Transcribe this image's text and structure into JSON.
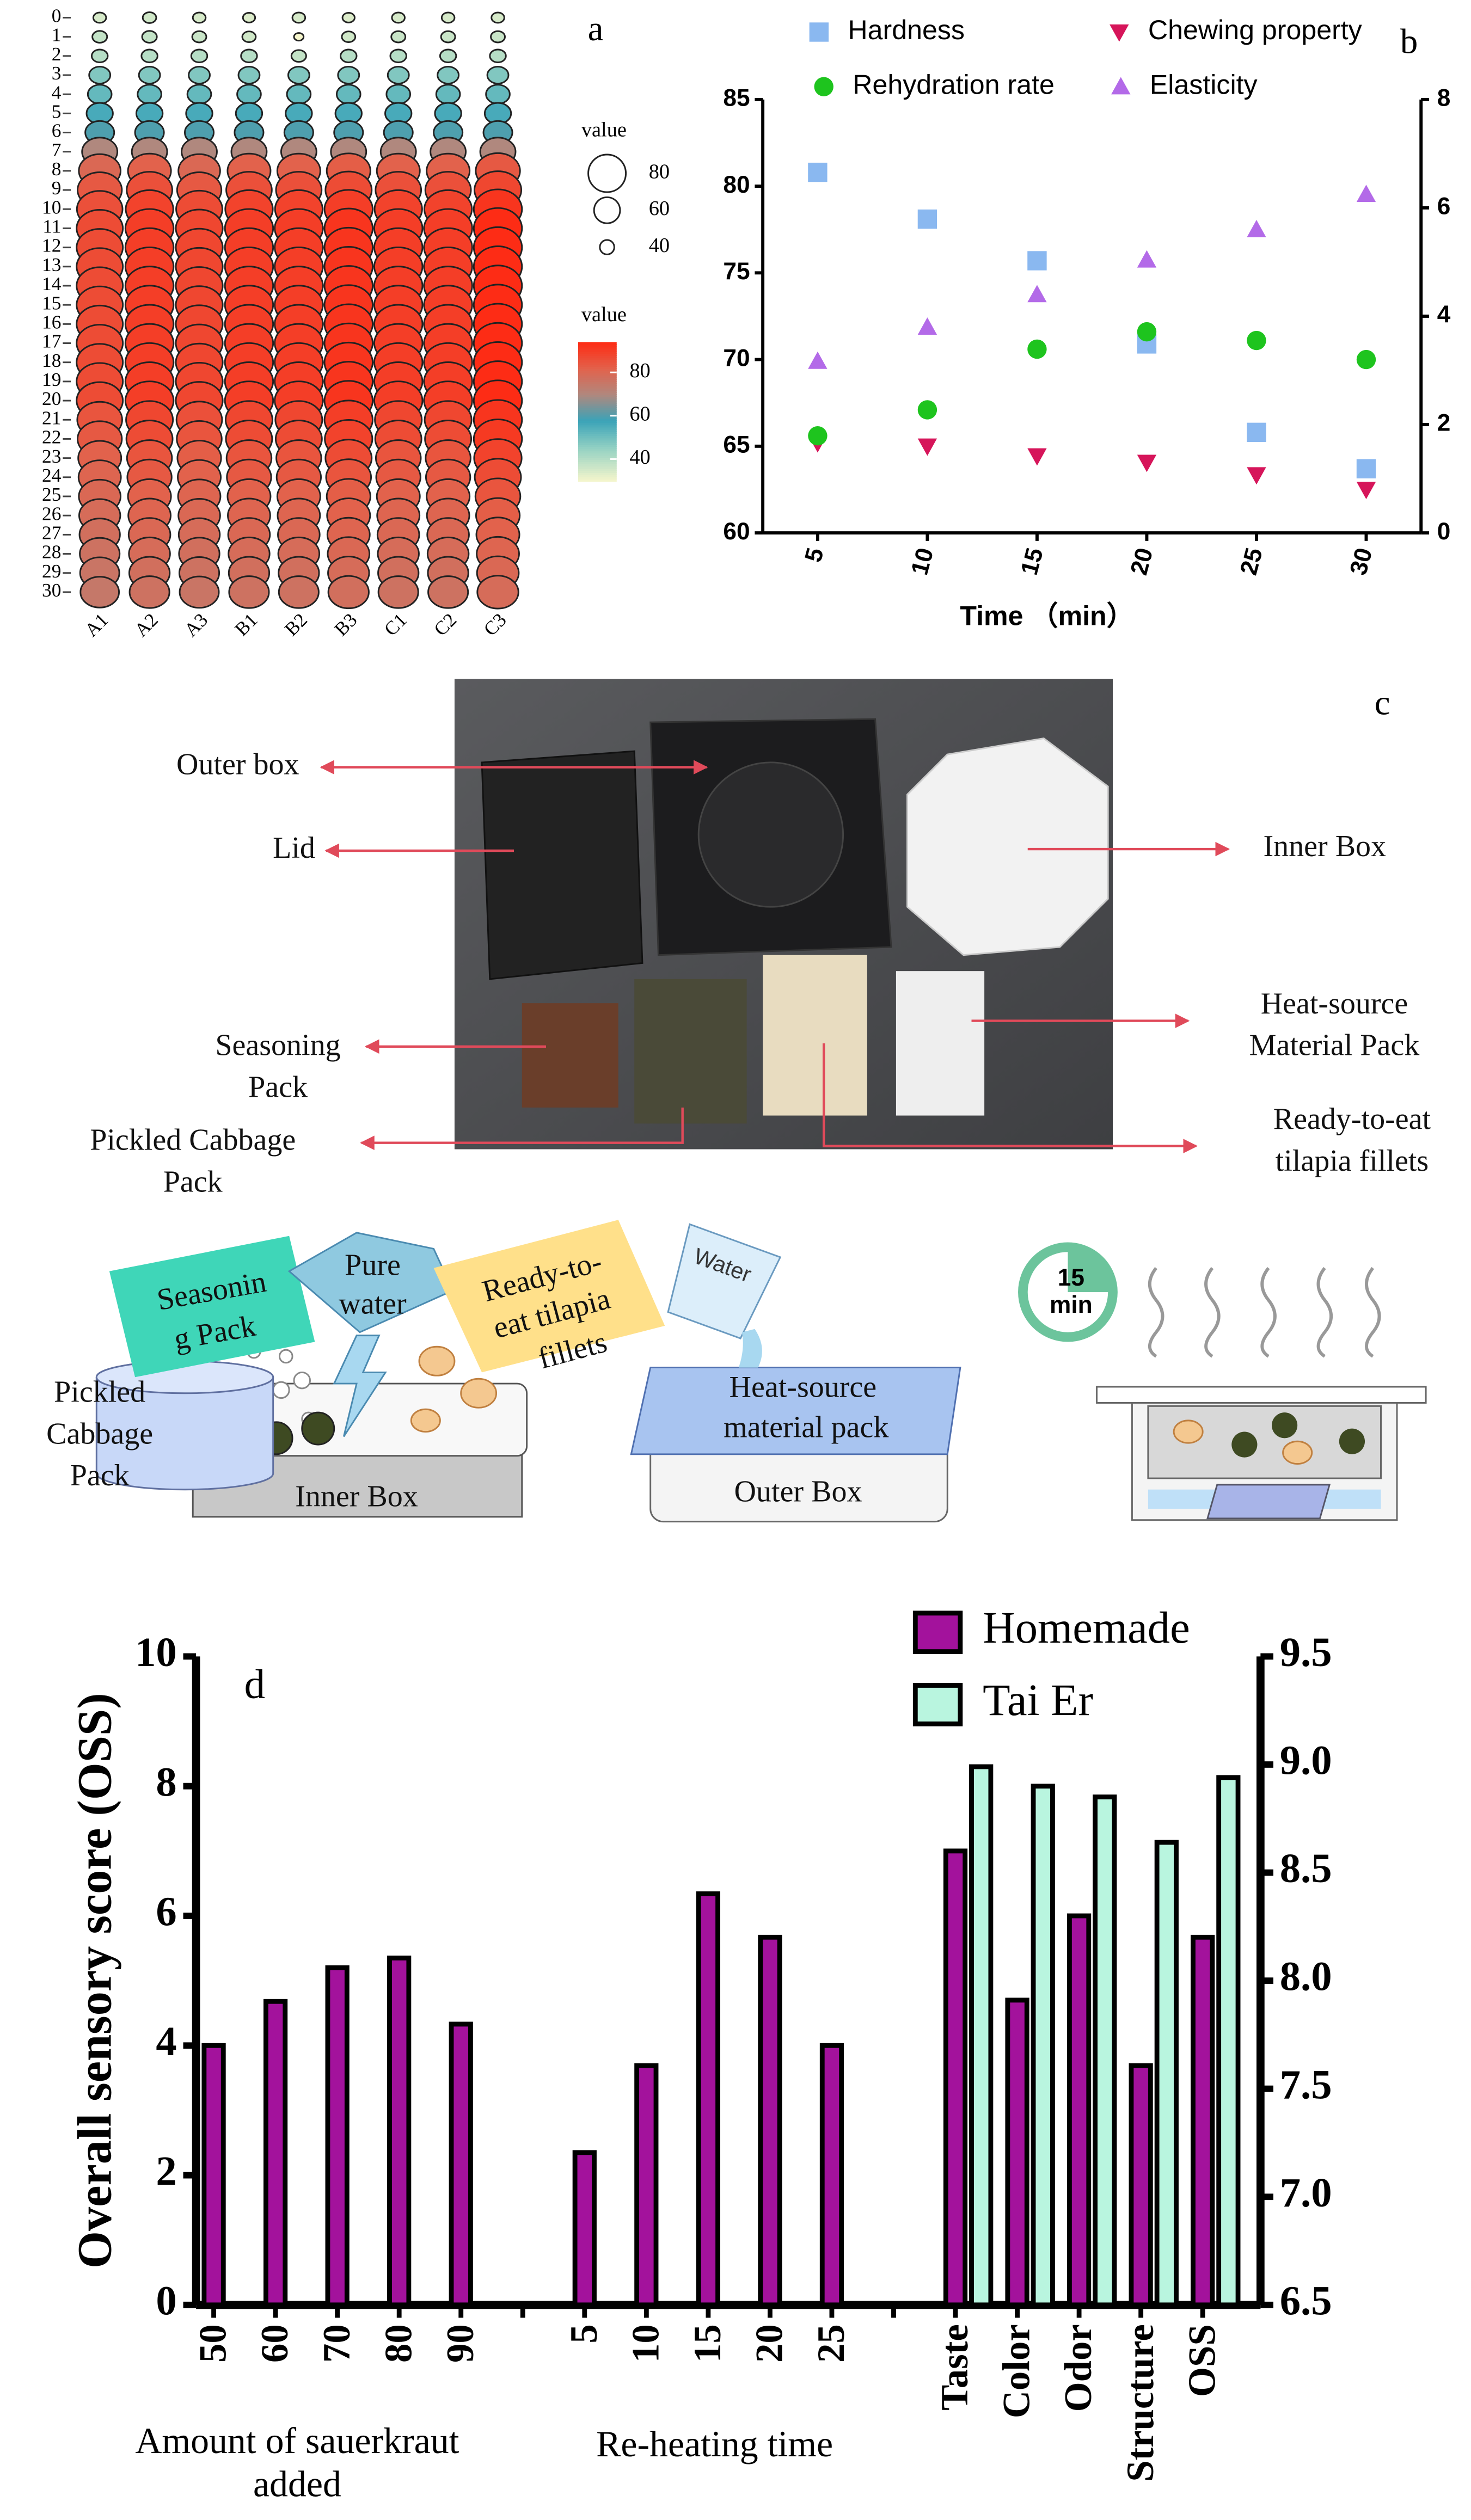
{
  "chart_data": [
    {
      "type": "bubble-heatmap",
      "label": "a",
      "columns": [
        "A1",
        "A2",
        "A3",
        "B1",
        "B2",
        "B3",
        "C1",
        "C2",
        "C3"
      ],
      "rows": [
        "0",
        "1",
        "2",
        "3",
        "4",
        "5",
        "6",
        "7",
        "8",
        "9",
        "10",
        "11",
        "12",
        "13",
        "14",
        "15",
        "16",
        "17",
        "18",
        "19",
        "20",
        "21",
        "22",
        "23",
        "24",
        "25",
        "26",
        "27",
        "28",
        "29",
        "30"
      ],
      "values": [
        [
          35,
          36,
          35,
          34,
          35,
          34,
          35,
          35,
          35
        ],
        [
          38,
          38,
          37,
          36,
          30,
          36,
          37,
          37,
          37
        ],
        [
          40,
          40,
          40,
          40,
          38,
          40,
          40,
          40,
          40
        ],
        [
          48,
          48,
          48,
          48,
          48,
          48,
          48,
          48,
          48
        ],
        [
          52,
          52,
          52,
          52,
          52,
          52,
          52,
          52,
          52
        ],
        [
          56,
          56,
          56,
          56,
          56,
          56,
          56,
          56,
          56
        ],
        [
          60,
          60,
          60,
          60,
          60,
          60,
          60,
          60,
          60
        ],
        [
          70,
          70,
          70,
          70,
          70,
          70,
          70,
          70,
          70
        ],
        [
          80,
          82,
          80,
          82,
          82,
          83,
          82,
          82,
          84
        ],
        [
          84,
          86,
          84,
          86,
          86,
          87,
          86,
          86,
          88
        ],
        [
          86,
          89,
          87,
          89,
          89,
          90,
          89,
          89,
          92
        ],
        [
          87,
          90,
          88,
          90,
          90,
          92,
          90,
          90,
          94
        ],
        [
          87,
          90,
          88,
          90,
          90,
          92,
          90,
          90,
          94
        ],
        [
          87,
          90,
          88,
          90,
          90,
          92,
          90,
          90,
          94
        ],
        [
          87,
          90,
          88,
          90,
          90,
          92,
          90,
          90,
          94
        ],
        [
          87,
          90,
          88,
          90,
          90,
          92,
          90,
          90,
          94
        ],
        [
          87,
          90,
          88,
          90,
          90,
          92,
          90,
          90,
          94
        ],
        [
          87,
          90,
          88,
          90,
          90,
          92,
          90,
          90,
          94
        ],
        [
          87,
          90,
          88,
          90,
          90,
          92,
          90,
          90,
          94
        ],
        [
          87,
          90,
          88,
          90,
          90,
          92,
          90,
          90,
          94
        ],
        [
          87,
          90,
          88,
          90,
          90,
          92,
          90,
          90,
          94
        ],
        [
          85,
          88,
          86,
          88,
          88,
          90,
          88,
          88,
          92
        ],
        [
          84,
          87,
          85,
          87,
          87,
          89,
          87,
          87,
          91
        ],
        [
          82,
          85,
          83,
          85,
          85,
          87,
          85,
          85,
          89
        ],
        [
          81,
          84,
          82,
          84,
          84,
          85,
          84,
          84,
          87
        ],
        [
          80,
          82,
          81,
          82,
          82,
          83,
          82,
          82,
          85
        ],
        [
          79,
          81,
          80,
          81,
          81,
          82,
          81,
          81,
          83
        ],
        [
          78,
          80,
          79,
          80,
          80,
          81,
          80,
          80,
          82
        ],
        [
          77,
          79,
          78,
          79,
          79,
          80,
          79,
          79,
          81
        ],
        [
          76,
          78,
          77,
          78,
          78,
          79,
          78,
          78,
          80
        ],
        [
          75,
          77,
          76,
          77,
          77,
          78,
          77,
          77,
          79
        ]
      ],
      "size_legend": {
        "title": "value",
        "values": [
          80,
          60,
          40
        ]
      },
      "color_legend": {
        "title": "value",
        "ticks": [
          80,
          60,
          40
        ]
      }
    },
    {
      "type": "scatter",
      "label": "b",
      "x_label": "Time （min）",
      "xlim": [
        2.5,
        32.5
      ],
      "xticks": [
        5,
        10,
        15,
        20,
        25,
        30
      ],
      "ylim": [
        60,
        85
      ],
      "yticks": [
        60,
        65,
        70,
        75,
        80,
        85
      ],
      "y2lim": [
        0,
        8
      ],
      "y2ticks": [
        0,
        2,
        4,
        6,
        8
      ],
      "series": [
        {
          "name": "Hardness",
          "color": "#8ab8f0",
          "marker": "square",
          "x": [
            5,
            10,
            15,
            20,
            25,
            30
          ],
          "values": [
            80.8,
            78.1,
            75.7,
            70.9,
            65.8,
            63.7
          ]
        },
        {
          "name": "Chewing property",
          "color": "#d6155a",
          "marker": "triangle-down",
          "axis": "y2",
          "x": [
            5,
            10,
            15,
            20,
            25,
            30
          ],
          "values": [
            1.66,
            1.6,
            1.42,
            1.3,
            1.07,
            0.8
          ]
        },
        {
          "name": "Rehydration rate",
          "color": "#1ec41e",
          "marker": "circle",
          "x": [
            5,
            10,
            15,
            20,
            25,
            30
          ],
          "values": [
            65.6,
            67.1,
            70.6,
            71.6,
            71.1,
            70.0
          ]
        },
        {
          "name": "Elasticity",
          "color": "#b36ae8",
          "marker": "triangle-up",
          "axis": "y2",
          "x": [
            5,
            10,
            15,
            20,
            25,
            30
          ],
          "values": [
            3.17,
            3.8,
            4.4,
            5.04,
            5.6,
            6.25
          ]
        }
      ]
    },
    {
      "type": "bar",
      "label": "d",
      "y_label": "Overall sensory score (OSS)",
      "categories": [
        "50",
        "60",
        "70",
        "80",
        "90",
        null,
        "5",
        "10",
        "15",
        "20",
        "25",
        null,
        "Taste",
        "Color",
        "Odor",
        "Structure",
        "OSS"
      ],
      "group_labels": [
        [
          "Amount of sauerkraut",
          "added"
        ],
        [
          "Re-heating time"
        ]
      ],
      "ylim": [
        0,
        10
      ],
      "yticks": [
        0,
        2,
        4,
        6,
        8,
        10
      ],
      "y2lim": [
        6.5,
        9.5
      ],
      "y2ticks": [
        6.5,
        {
          "value": 7,
          "label": "7.0"
        },
        7.5,
        {
          "value": 8,
          "label": "8.0"
        },
        8.5,
        {
          "value": 9,
          "label": "9.0"
        },
        9.5
      ],
      "series": [
        {
          "name": "Homemade",
          "color": "#a3129c",
          "values": [
            4.0,
            4.68,
            5.2,
            5.35,
            4.33,
            null,
            2.35,
            3.69,
            6.34,
            5.67,
            4.0,
            null,
            7.0,
            4.7,
            6.0,
            3.69,
            5.67
          ]
        },
        {
          "name": "Tai Er",
          "color": "#b9f5df",
          "axis": "y2",
          "values": [
            null,
            null,
            null,
            null,
            null,
            null,
            null,
            null,
            null,
            null,
            null,
            null,
            8.99,
            8.9,
            8.85,
            8.64,
            8.94
          ]
        }
      ]
    }
  ],
  "figure_c": {
    "label": "c",
    "photo": {
      "outer_box": "Outer box",
      "lid": "Lid",
      "inner_box": "Inner Box",
      "seasoning_pack": [
        "Seasoning",
        "Pack"
      ],
      "pickled_cabbage_pack": [
        "Pickled Cabbage",
        "Pack"
      ],
      "heat_source_pack": [
        "Heat-source",
        "Material Pack"
      ],
      "tilapia_fillets": [
        "Ready-to-eat",
        "tilapia fillets"
      ]
    },
    "process": {
      "seasoning_pack": [
        "Seasonin",
        "g Pack"
      ],
      "pure_water": [
        "Pure",
        "water"
      ],
      "tilapia_fillets": [
        "Ready-to-",
        "eat tilapia",
        "fillets"
      ],
      "water": "Water",
      "pickled_cabbage_pack": [
        "Pickled",
        "Cabbage",
        "Pack"
      ],
      "inner_box": "Inner Box",
      "heat_source_pack": [
        "Heat-source",
        "material pack"
      ],
      "outer_box": "Outer Box",
      "timer": [
        "15",
        "min"
      ]
    }
  }
}
